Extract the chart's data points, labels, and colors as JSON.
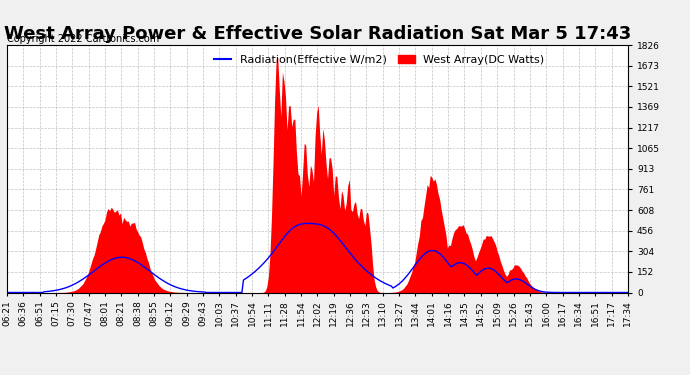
{
  "title": "West Array Power & Effective Solar Radiation Sat Mar 5 17:43",
  "copyright": "Copyright 2022 Cartronics.com",
  "legend_radiation": "Radiation(Effective W/m2)",
  "legend_west": "West Array(DC Watts)",
  "radiation_color": "blue",
  "west_color": "red",
  "ymax": 1825.5,
  "ymin": 0.0,
  "yticks": [
    0.0,
    152.1,
    304.2,
    456.4,
    608.5,
    760.6,
    912.7,
    1064.9,
    1217.0,
    1369.1,
    1521.2,
    1673.4,
    1825.5
  ],
  "bg_color": "#f0f0f0",
  "plot_bg": "#ffffff",
  "title_fontsize": 13,
  "tick_fontsize": 6.5,
  "legend_fontsize": 8,
  "copyright_fontsize": 7,
  "grid_color": "#aaaaaa",
  "grid_style": "--",
  "x_labels": [
    "06:21",
    "06:36",
    "06:51",
    "07:15",
    "07:30",
    "07:47",
    "08:01",
    "08:21",
    "08:38",
    "08:55",
    "09:12",
    "09:29",
    "09:43",
    "10:03",
    "10:37",
    "10:54",
    "11:11",
    "11:28",
    "11:54",
    "12:02",
    "12:19",
    "12:36",
    "12:53",
    "13:10",
    "13:27",
    "13:44",
    "14:01",
    "14:16",
    "14:35",
    "14:52",
    "15:09",
    "15:26",
    "15:43",
    "16:00",
    "16:17",
    "16:34",
    "16:51",
    "17:17",
    "17:34"
  ]
}
